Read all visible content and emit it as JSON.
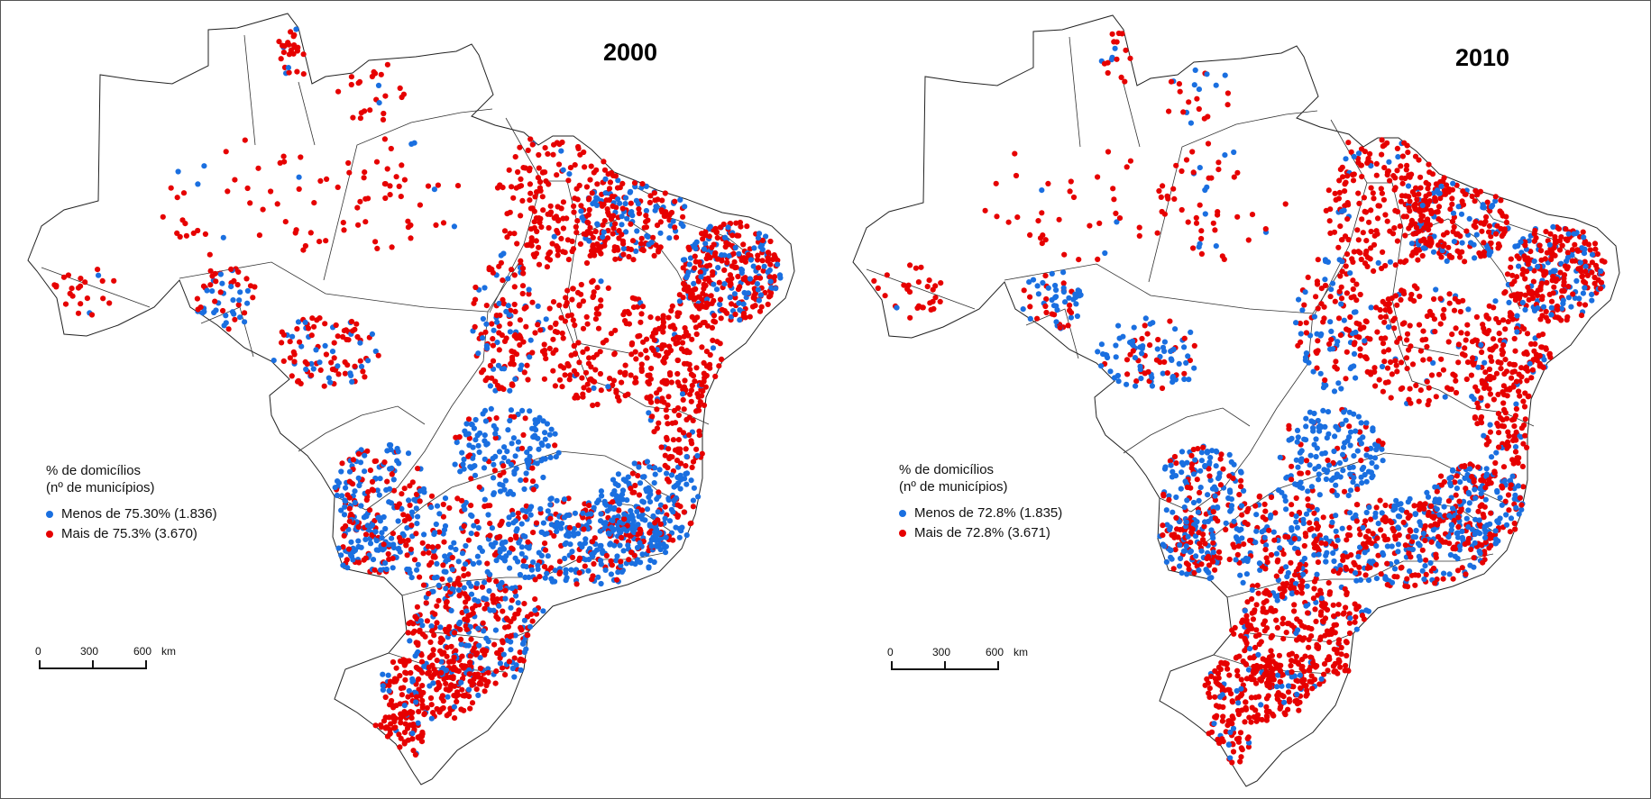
{
  "maps": [
    {
      "year": "2000",
      "legend_title_line1": "% de domicílios",
      "legend_title_line2": "(nº de municípios)",
      "legend_items": [
        {
          "label": "Menos de 75.30% (1.836)",
          "color": "#1a6fe0"
        },
        {
          "label": "Mais de 75.3% (3.670)",
          "color": "#e60000"
        }
      ],
      "scale": {
        "t0": "0",
        "t1": "300",
        "t2": "600",
        "unit": "km"
      },
      "seed": 20
    },
    {
      "year": "2010",
      "legend_title_line1": "% de domicílios",
      "legend_title_line2": "(nº de municípios)",
      "legend_items": [
        {
          "label": "Menos de 72.8% (1.835)",
          "color": "#1a6fe0"
        },
        {
          "label": "Mais de 72.8% (3.671)",
          "color": "#e60000"
        }
      ],
      "scale": {
        "t0": "0",
        "t1": "300",
        "t2": "600",
        "unit": "km"
      },
      "seed": 31
    }
  ]
}
